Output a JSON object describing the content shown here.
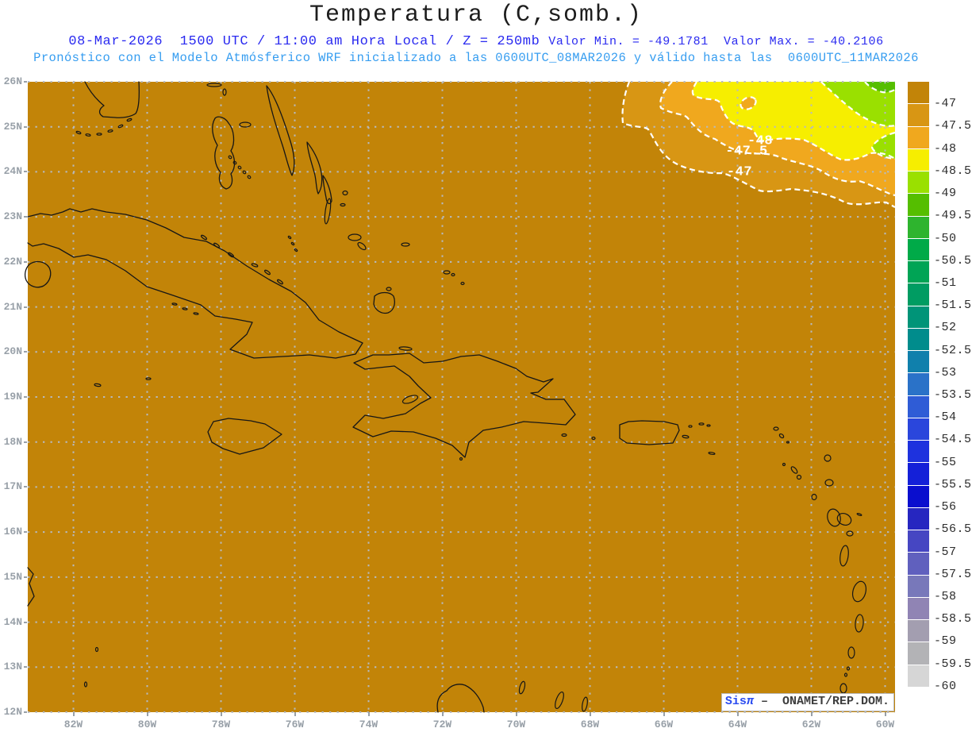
{
  "title": "Temperatura (C,somb.)",
  "header": {
    "line1_main": "08-Mar-2026  1500 UTC / 11:00 am Hora Local / Z = 250mb ",
    "line1_stats": "Valor Min. = -49.1781  Valor Max. = -40.2106",
    "line2": "Pronóstico con el Modelo Atmósferico WRF inicializado a las 0600UTC_08MAR2026 y válido hasta las  0600UTC_11MAR2026"
  },
  "axes": {
    "lat_labels": [
      "26N",
      "25N",
      "24N",
      "23N",
      "22N",
      "21N",
      "20N",
      "19N",
      "18N",
      "17N",
      "16N",
      "15N",
      "14N",
      "13N",
      "12N"
    ],
    "lon_labels": [
      "82W",
      "80W",
      "78W",
      "76W",
      "74W",
      "72W",
      "70W",
      "68W",
      "66W",
      "64W",
      "62W",
      "60W"
    ]
  },
  "map": {
    "contour_labels": [
      "-48",
      "-47.5",
      "-47"
    ]
  },
  "colorbar": {
    "tick_labels": [
      "-47",
      "-47.5",
      "-48",
      "-48.5",
      "-49",
      "-49.5",
      "-50",
      "-50.5",
      "-51",
      "-51.5",
      "-52",
      "-52.5",
      "-53",
      "-53.5",
      "-54",
      "-54.5",
      "-55",
      "-55.5",
      "-56",
      "-56.5",
      "-57",
      "-57.5",
      "-58",
      "-58.5",
      "-59",
      "-59.5",
      "-60"
    ],
    "colors": [
      "#c28408",
      "#d89614",
      "#f0a81e",
      "#f6ee00",
      "#9ae000",
      "#55be00",
      "#2eb42e",
      "#00aa48",
      "#00a455",
      "#009c62",
      "#009478",
      "#008c8c",
      "#1080ac",
      "#2a72c8",
      "#2f5cd6",
      "#2a46dc",
      "#1e32de",
      "#1420d8",
      "#0a0ece",
      "#2626c0",
      "#4646c2",
      "#6060be",
      "#7878ba",
      "#9084b4",
      "#a39eb0",
      "#b3b3b6",
      "#d6d6d6",
      "#ffffff"
    ]
  },
  "watermark": {
    "brand": "Sis",
    "pi": "π",
    "separator": "–",
    "org": "ONAMET/REP.DOM."
  },
  "chart_data": {
    "type": "filled-contour-map",
    "variable": "Temperatura (C,somb.)",
    "level": "250mb",
    "valid_time": "08-Mar-2026 1500 UTC / 11:00 am Hora Local",
    "value_min": -49.1781,
    "value_max": -40.2106,
    "model": "WRF",
    "init_time": "0600UTC_08MAR2026",
    "valid_until": "0600UTC_11MAR2026",
    "lat_ticks": [
      "26N",
      "25N",
      "24N",
      "23N",
      "22N",
      "21N",
      "20N",
      "19N",
      "18N",
      "17N",
      "16N",
      "15N",
      "14N",
      "13N",
      "12N"
    ],
    "lon_ticks": [
      "82W",
      "80W",
      "78W",
      "76W",
      "74W",
      "72W",
      "70W",
      "68W",
      "66W",
      "64W",
      "62W",
      "60W"
    ],
    "colorbar_levels_c": [
      -47,
      -47.5,
      -48,
      -48.5,
      -49,
      -49.5,
      -50,
      -50.5,
      -51,
      -51.5,
      -52,
      -52.5,
      -53,
      -53.5,
      -54,
      -54.5,
      -55,
      -55.5,
      -56,
      -56.5,
      -57,
      -57.5,
      -58,
      -58.5,
      -59,
      -59.5,
      -60
    ],
    "map_contour_labels_c": [
      -48,
      -47.5,
      -47
    ],
    "field_note": "Nearly uniform field warmer than -47C over the whole domain; colder pocket below -49C confined to the northeast corner"
  }
}
